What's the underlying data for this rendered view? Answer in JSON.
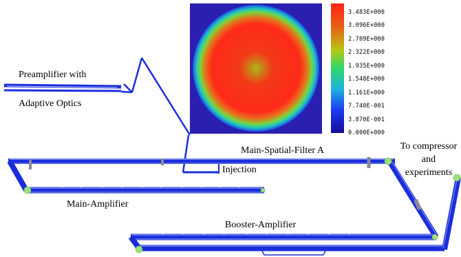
{
  "labels": {
    "preamp_line1": "Preamplifier with",
    "preamp_line2": "Adaptive Optics",
    "main_spatial_filter": "Main-Spatial-Filter A",
    "injection": "Injection",
    "main_amplifier": "Main-Amplifier",
    "booster_amplifier": "Booster-Amplifier",
    "to_compressor_1": "To compressor",
    "to_compressor_2": "and",
    "to_compressor_3": "experiments"
  },
  "colorbar": {
    "ticks": [
      "3.483E+000",
      "3.096E+000",
      "2.709E+000",
      "2.322E+000",
      "1.935E+000",
      "1.548E+000",
      "1.161E+000",
      "7.740E-001",
      "3.870E-001",
      "0.000E+000"
    ],
    "colors": [
      "#ff2a1a",
      "#ee5a14",
      "#d8a010",
      "#b4c214",
      "#56d23a",
      "#26d48a",
      "#1eb2d6",
      "#1a66f0",
      "#1820ea",
      "#1410b2"
    ]
  },
  "colors": {
    "beamline": "#1a2edc",
    "beamline_light": "#8c9cf0",
    "endcap": "#9be07a",
    "map_background": "#2a1fb0"
  }
}
